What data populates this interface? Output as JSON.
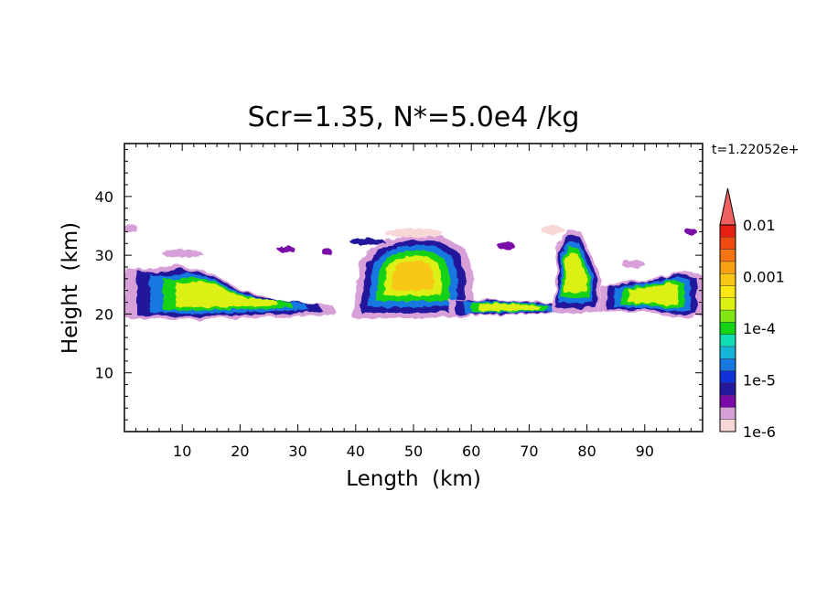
{
  "chart_data": {
    "type": "heatmap",
    "title": "Scr=1.35, N*=5.0e4 /kg",
    "time_label": "t=1.22052e+",
    "xlabel": "Length  (km)",
    "ylabel": "Height  (km)",
    "xlim": [
      0,
      100
    ],
    "ylim": [
      0,
      49
    ],
    "x_ticks": [
      10,
      20,
      30,
      40,
      50,
      60,
      70,
      80,
      90
    ],
    "y_ticks": [
      10,
      20,
      30,
      40
    ],
    "colorbar": {
      "scale": "log",
      "range": [
        1e-06,
        0.01
      ],
      "tick_labels": [
        "0.01",
        "0.001",
        "1e-4",
        "1e-5",
        "1e-6"
      ],
      "levels": [
        "#f7d6d6",
        "#d8a0d8",
        "#7a0aa8",
        "#24189c",
        "#1030d8",
        "#1678e0",
        "#14b4d8",
        "#10dcb4",
        "#14d214",
        "#82e614",
        "#dcf014",
        "#fce614",
        "#f9c814",
        "#f7a012",
        "#f37412",
        "#ee4a12",
        "#e62012",
        "#f06060"
      ]
    },
    "cloud_regions": [
      {
        "name": "left band",
        "x": [
          0,
          37
        ],
        "y": [
          19,
          28
        ]
      },
      {
        "name": "central cell",
        "x": [
          39,
          60
        ],
        "y": [
          19,
          33
        ]
      },
      {
        "name": "connecting layer",
        "x": [
          58,
          78
        ],
        "y": [
          20,
          22
        ]
      },
      {
        "name": "tower",
        "x": [
          74,
          82
        ],
        "y": [
          20,
          34
        ]
      },
      {
        "name": "right band",
        "x": [
          82,
          100
        ],
        "y": [
          19,
          27
        ]
      },
      {
        "name": "upper scattered cloud",
        "x": [
          0,
          100
        ],
        "y": [
          28,
          35
        ]
      }
    ]
  }
}
